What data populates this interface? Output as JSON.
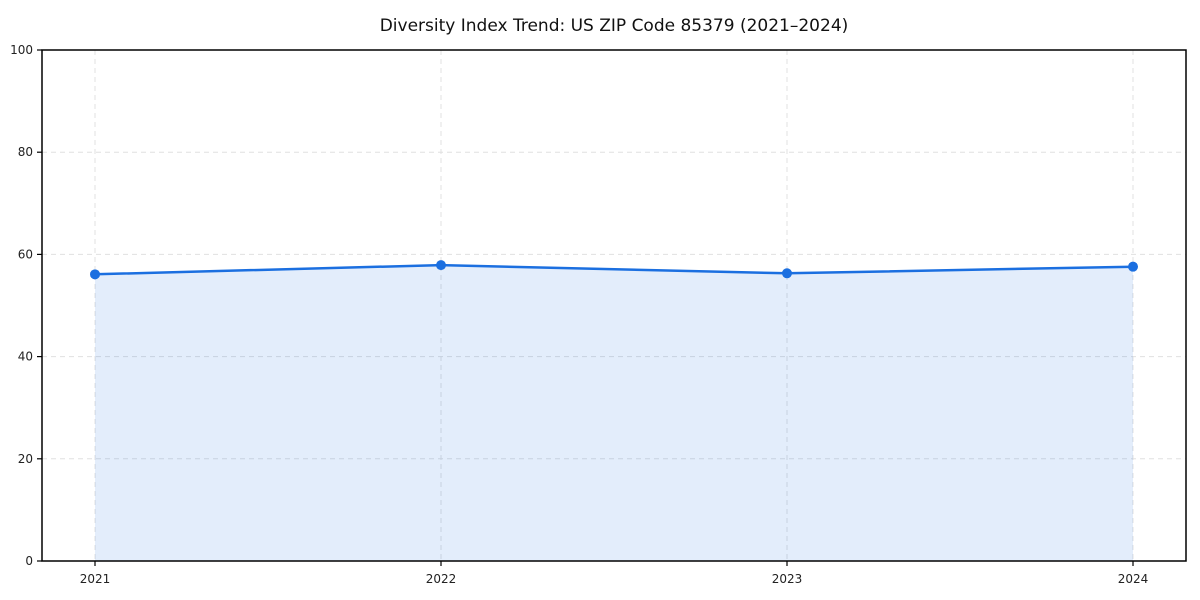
{
  "page": {
    "background": "#ffffff"
  },
  "chart_data": {
    "type": "line",
    "title": "Diversity Index Trend: US ZIP Code 85379 (2021–2024)",
    "categories": [
      "2021",
      "2022",
      "2023",
      "2024"
    ],
    "x": [
      2021,
      2022,
      2023,
      2024
    ],
    "series": [
      {
        "name": "Diversity Index",
        "values": [
          56.1,
          57.9,
          56.3,
          57.6
        ]
      }
    ],
    "xlabel": "",
    "ylabel": "",
    "ylim": [
      0,
      100
    ],
    "yticks": [
      0,
      20,
      40,
      60,
      80,
      100
    ],
    "grid": true,
    "grid_style": "dashed",
    "grid_color": "#e0e0e0",
    "line_color": "#1b6fe0",
    "marker_color": "#1b6fe0",
    "fill_color": "#1b6fe0",
    "fill_opacity": 0.12,
    "marker": "circle",
    "spine_color": "#000000",
    "legend_position": "none"
  }
}
